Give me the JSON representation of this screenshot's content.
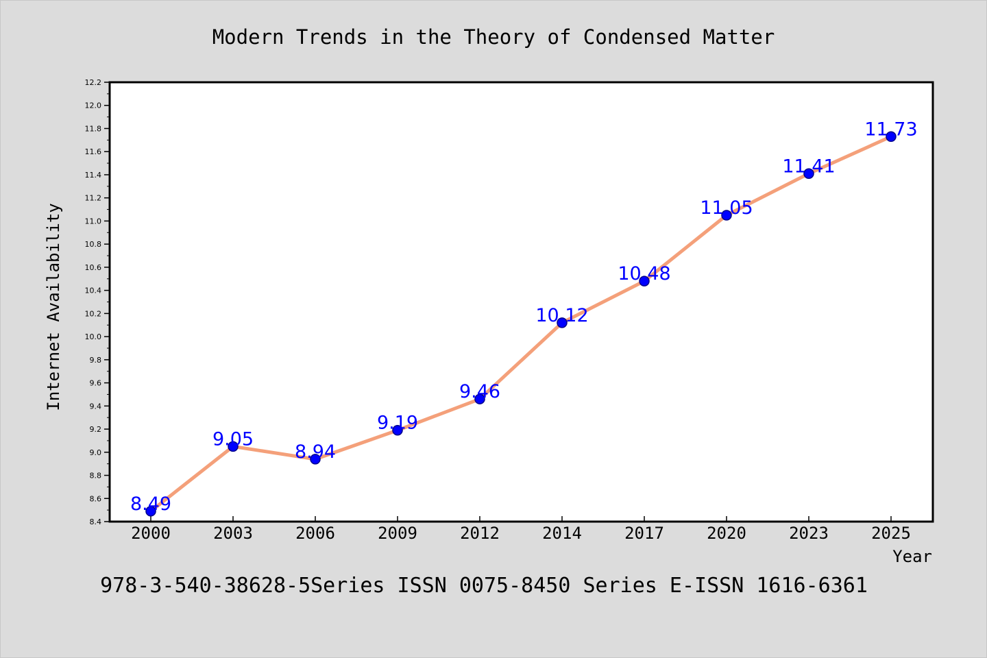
{
  "chart_data": {
    "type": "line",
    "title": "Modern Trends in the Theory of Condensed Matter",
    "xlabel": "Year",
    "ylabel": "Internet Availability",
    "categories": [
      "2000",
      "2003",
      "2006",
      "2009",
      "2012",
      "2014",
      "2017",
      "2020",
      "2023",
      "2025"
    ],
    "series": [
      {
        "values": [
          8.49,
          9.05,
          8.94,
          9.19,
          9.46,
          10.12,
          10.48,
          11.05,
          11.41,
          11.73
        ]
      }
    ],
    "data_labels": [
      "8.49",
      "9.05",
      "8.94",
      "9.19",
      "9.46",
      "10.12",
      "10.48",
      "11.05",
      "11.41",
      "11.73"
    ],
    "ylim": [
      8.4,
      12.2
    ],
    "yticks": [
      "8.4",
      "8.6",
      "8.8",
      "9.0",
      "9.2",
      "9.4",
      "9.6",
      "9.8",
      "10.0",
      "10.2",
      "10.4",
      "10.6",
      "10.8",
      "11.0",
      "11.2",
      "11.4",
      "11.6",
      "11.8",
      "12.0",
      "12.2"
    ],
    "grid": false,
    "legend": "none",
    "footer": "978-3-540-38628-5Series ISSN 0075-8450 Series E-ISSN 1616-6361",
    "colors": {
      "background": "#dcdcdc",
      "plot_background": "#ffffff",
      "line": "#f4a07a",
      "marker": "#0000ff",
      "data_label": "#0000ff",
      "text": "#000000"
    }
  }
}
